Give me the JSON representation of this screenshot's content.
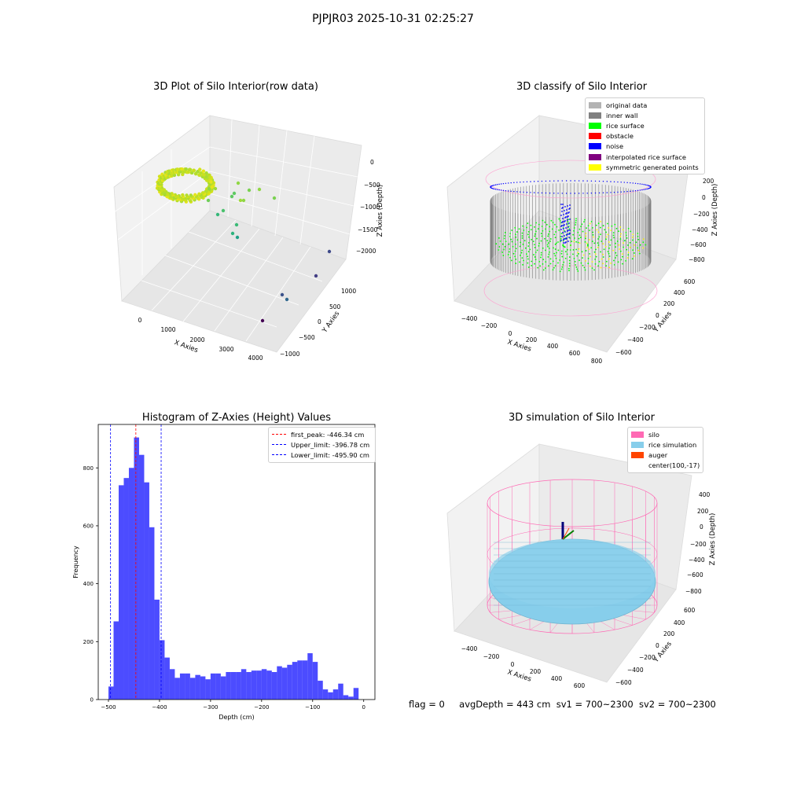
{
  "figure": {
    "suptitle": "PJPJR03 2025-10-31 02:25:27",
    "footer": {
      "flag": "flag = 0",
      "avg_depth": "avgDepth = 443 cm",
      "sv1": "sv1 = 700~2300",
      "sv2": "sv2 = 700~2300"
    }
  },
  "panels": {
    "raw": {
      "title": "3D Plot of Silo Interior(row data)",
      "xlabel": "X Axies",
      "ylabel": "Y Axies",
      "zlabel": "Z Axies (Depth)",
      "x_ticks": [
        "0",
        "1000",
        "2000",
        "3000",
        "4000"
      ],
      "y_ticks": [
        "−1000",
        "−500",
        "0",
        "500",
        "1000"
      ],
      "z_ticks": [
        "0",
        "−500",
        "−1000",
        "−1500",
        "−2000"
      ]
    },
    "classify": {
      "title": "3D classify of Silo Interior",
      "xlabel": "X Axies",
      "ylabel": "Y Axies",
      "zlabel": "Z Axies (Depth)",
      "x_ticks": [
        "−400",
        "−200",
        "0",
        "200",
        "400",
        "600",
        "800"
      ],
      "y_ticks": [
        "−600",
        "−400",
        "−200",
        "0",
        "200",
        "400",
        "600"
      ],
      "z_ticks": [
        "200",
        "0",
        "−200",
        "−400",
        "−600",
        "−800"
      ],
      "legend": [
        {
          "label": "original data",
          "color": "#b3b3b3"
        },
        {
          "label": "inner wall",
          "color": "#808080"
        },
        {
          "label": "rice surface",
          "color": "#00ff00"
        },
        {
          "label": "obstacle",
          "color": "#ff0000"
        },
        {
          "label": "noise",
          "color": "#0000ff"
        },
        {
          "label": "interpolated rice surface",
          "color": "#800080"
        },
        {
          "label": "symmetric generated points",
          "color": "#ffff00"
        }
      ]
    },
    "simulation": {
      "title": "3D simulation of Silo Interior",
      "xlabel": "X Axies",
      "ylabel": "Y Axies",
      "zlabel": "Z Axies (Depth)",
      "x_ticks": [
        "−400",
        "−200",
        "0",
        "200",
        "400",
        "600"
      ],
      "y_ticks": [
        "−600",
        "−400",
        "−200",
        "0",
        "200",
        "400",
        "600"
      ],
      "z_ticks": [
        "400",
        "200",
        "0",
        "−200",
        "−400",
        "−600",
        "−800"
      ],
      "legend": [
        {
          "label": "silo",
          "color": "#ff69b4"
        },
        {
          "label": "rice simulation",
          "color": "#87ceeb"
        },
        {
          "label": "auger",
          "color": "#ff4500"
        },
        {
          "label": "center(100,-17)",
          "color": ""
        }
      ]
    }
  },
  "chart_data": {
    "type": "bar",
    "title": "Histogram of Z-Axies (Height) Values",
    "xlabel": "Depth (cm)",
    "ylabel": "Frequency",
    "bar_color": "#0000ff",
    "bin_start": -500,
    "bin_width": 10,
    "frequencies": [
      45,
      270,
      740,
      765,
      800,
      905,
      845,
      750,
      595,
      345,
      205,
      145,
      105,
      75,
      90,
      90,
      75,
      85,
      80,
      70,
      90,
      90,
      80,
      95,
      95,
      95,
      105,
      95,
      100,
      100,
      105,
      100,
      95,
      115,
      110,
      120,
      130,
      135,
      135,
      160,
      130,
      65,
      35,
      25,
      35,
      55,
      15,
      10,
      40
    ],
    "xlim": [
      -520,
      22
    ],
    "ylim": [
      0,
      950
    ],
    "x_ticks": [
      -500,
      -400,
      -300,
      -200,
      -100,
      0
    ],
    "y_ticks": [
      0,
      200,
      400,
      600,
      800
    ],
    "vlines": [
      {
        "label": "first_peak: -446.34 cm",
        "x": -446.34,
        "color": "#ff0000"
      },
      {
        "label": "Upper_limit: -396.78 cm",
        "x": -396.78,
        "color": "#0000ff"
      },
      {
        "label": "Lower_limit: -495.90 cm",
        "x": -495.9,
        "color": "#0000ff"
      }
    ],
    "legend_position": "upper right"
  }
}
